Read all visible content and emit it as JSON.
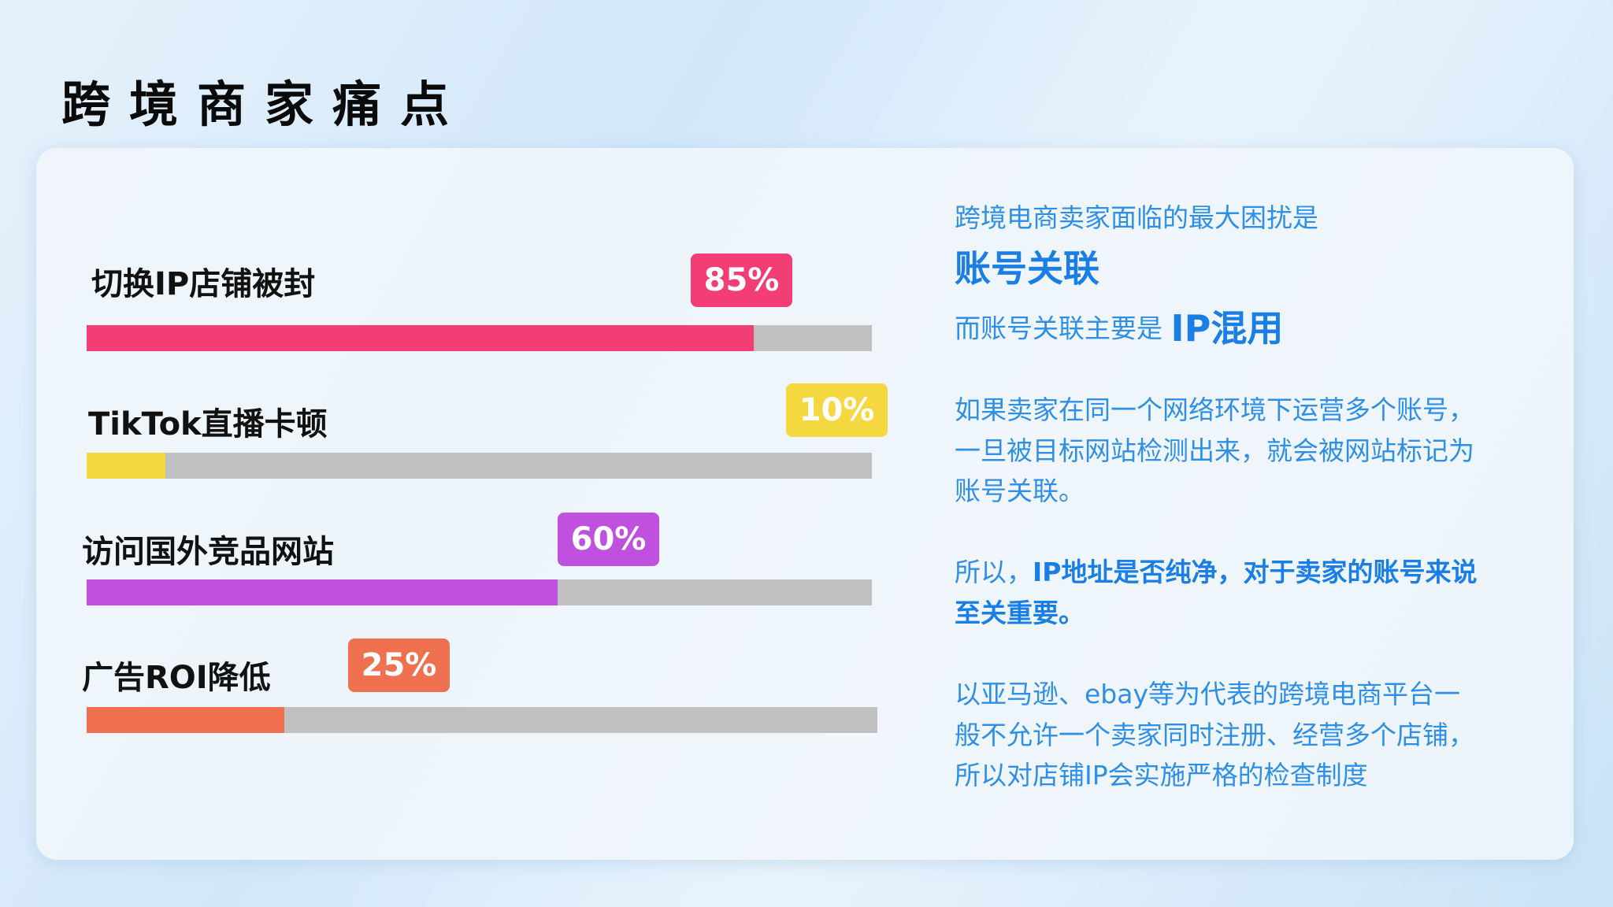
{
  "title": "跨境商家痛点",
  "items": [
    {
      "label": "切换IP店铺被封",
      "percent": "85%",
      "value": 85,
      "color": "#f23d75"
    },
    {
      "label": "TikTok直播卡顿",
      "percent": "10%",
      "value": 10,
      "color": "#f5d73f"
    },
    {
      "label": "访问国外竞品网站",
      "percent": "60%",
      "value": 60,
      "color": "#c050de"
    },
    {
      "label": "广告ROI降低",
      "percent": "25%",
      "value": 25,
      "color": "#f07150"
    }
  ],
  "right": {
    "line1": "跨境电商卖家面临的最大困扰是",
    "highlight1": "账号关联",
    "line3_prefix": "而账号关联主要是 ",
    "highlight2": "IP混用",
    "para1": [
      "如果卖家在同一个网络环境下运营多个账号，",
      "一旦被目标网站检测出来，就会被网站标记为",
      "账号关联。"
    ],
    "para2_prefix": "所以，",
    "para2_bold1": "IP地址是否纯净，对于卖家的账号来说",
    "para2_bold2": "至关重要。",
    "para3": [
      "以亚马逊、ebay等为代表的跨境电商平台一",
      "般不允许一个卖家同时注册、经营多个店铺，",
      "所以对店铺IP会实施严格的检查制度"
    ]
  }
}
